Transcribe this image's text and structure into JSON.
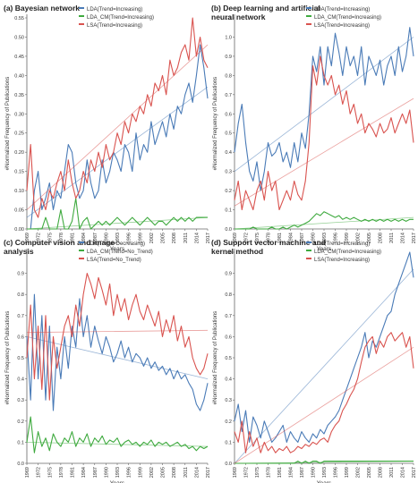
{
  "chart_data": [
    {
      "type": "line",
      "title": "(a) Bayesian network",
      "xlabel": "Years",
      "ylabel": "#Normalized Frequency of Publications",
      "ylim": [
        0,
        0.55
      ],
      "yticks": [
        "0.00",
        "0.05",
        "0.10",
        "0.15",
        "0.20",
        "0.25",
        "0.30",
        "0.35",
        "0.40",
        "0.45",
        "0.50",
        "0.55"
      ],
      "x_tick_labels": [
        "1969",
        "1972",
        "1975",
        "1978",
        "1981",
        "1984",
        "1987",
        "1990",
        "1993",
        "1996",
        "1999",
        "2002",
        "2005",
        "2008",
        "2011",
        "2014",
        "2017"
      ],
      "x": [
        1969,
        1970,
        1971,
        1972,
        1973,
        1974,
        1975,
        1976,
        1977,
        1978,
        1979,
        1980,
        1981,
        1982,
        1983,
        1984,
        1985,
        1986,
        1987,
        1988,
        1989,
        1990,
        1991,
        1992,
        1993,
        1994,
        1995,
        1996,
        1997,
        1998,
        1999,
        2000,
        2001,
        2002,
        2003,
        2004,
        2005,
        2006,
        2007,
        2008,
        2009,
        2010,
        2011,
        2012,
        2013,
        2014,
        2015,
        2016,
        2017
      ],
      "series": [
        {
          "name": "LDA(Trend=Increasing)",
          "color": "#4a7bb7",
          "values": [
            0.0,
            0.0,
            0.1,
            0.15,
            0.05,
            0.08,
            0.12,
            0.05,
            0.1,
            0.08,
            0.15,
            0.22,
            0.2,
            0.12,
            0.08,
            0.1,
            0.18,
            0.12,
            0.08,
            0.1,
            0.18,
            0.12,
            0.15,
            0.2,
            0.18,
            0.15,
            0.22,
            0.2,
            0.15,
            0.25,
            0.18,
            0.22,
            0.2,
            0.28,
            0.22,
            0.25,
            0.28,
            0.24,
            0.3,
            0.26,
            0.32,
            0.3,
            0.35,
            0.38,
            0.33,
            0.4,
            0.48,
            0.42,
            0.34
          ],
          "trend": [
            0.03,
            0.37
          ]
        },
        {
          "name": "LDA_CM(Trend=Increasing)",
          "color": "#3faa3f",
          "values": [
            0.0,
            0.0,
            0.0,
            0.0,
            0.0,
            0.03,
            0.0,
            0.0,
            0.0,
            0.05,
            0.0,
            0.0,
            0.02,
            0.08,
            0.0,
            0.02,
            0.03,
            0.0,
            0.01,
            0.02,
            0.01,
            0.02,
            0.01,
            0.02,
            0.03,
            0.02,
            0.01,
            0.02,
            0.03,
            0.02,
            0.01,
            0.02,
            0.03,
            0.02,
            0.01,
            0.02,
            0.02,
            0.01,
            0.02,
            0.03,
            0.02,
            0.03,
            0.02,
            0.03,
            0.02,
            0.03,
            0.03,
            0.03,
            0.03
          ],
          "trend": [
            0.0,
            0.03
          ]
        },
        {
          "name": "LSA(Trend=Increasing)",
          "color": "#d9534f",
          "values": [
            0.1,
            0.22,
            0.05,
            0.03,
            0.08,
            0.05,
            0.1,
            0.08,
            0.12,
            0.15,
            0.1,
            0.18,
            0.12,
            0.08,
            0.1,
            0.15,
            0.12,
            0.18,
            0.15,
            0.2,
            0.16,
            0.22,
            0.18,
            0.2,
            0.25,
            0.22,
            0.28,
            0.25,
            0.3,
            0.28,
            0.32,
            0.3,
            0.35,
            0.32,
            0.38,
            0.36,
            0.4,
            0.35,
            0.44,
            0.4,
            0.42,
            0.46,
            0.48,
            0.44,
            0.55,
            0.45,
            0.5,
            0.44,
            0.42
          ],
          "trend": [
            0.05,
            0.48
          ]
        }
      ]
    },
    {
      "type": "line",
      "title": "(b) Deep learning and artificial neural network",
      "xlabel": "Years",
      "ylabel": "#Normalized Frequency of Publications",
      "ylim": [
        0,
        1.1
      ],
      "yticks": [
        "0.0",
        "0.1",
        "0.2",
        "0.3",
        "0.4",
        "0.5",
        "0.6",
        "0.7",
        "0.8",
        "0.9",
        "1.0",
        "1.1"
      ],
      "x_tick_labels": [
        "1969",
        "1972",
        "1975",
        "1978",
        "1981",
        "1984",
        "1987",
        "1990",
        "1993",
        "1996",
        "1999",
        "2002",
        "2005",
        "2008",
        "2011",
        "2014",
        "2017"
      ],
      "x": [
        1969,
        1970,
        1971,
        1972,
        1973,
        1974,
        1975,
        1976,
        1977,
        1978,
        1979,
        1980,
        1981,
        1982,
        1983,
        1984,
        1985,
        1986,
        1987,
        1988,
        1989,
        1990,
        1991,
        1992,
        1993,
        1994,
        1995,
        1996,
        1997,
        1998,
        1999,
        2000,
        2001,
        2002,
        2003,
        2004,
        2005,
        2006,
        2007,
        2008,
        2009,
        2010,
        2011,
        2012,
        2013,
        2014,
        2015,
        2016,
        2017
      ],
      "series": [
        {
          "name": "LDA(Trend=Increasing)",
          "color": "#4a7bb7",
          "values": [
            0.4,
            0.55,
            0.65,
            0.45,
            0.3,
            0.25,
            0.35,
            0.2,
            0.3,
            0.45,
            0.38,
            0.4,
            0.45,
            0.35,
            0.4,
            0.32,
            0.45,
            0.35,
            0.5,
            0.42,
            0.6,
            0.9,
            0.82,
            0.95,
            0.75,
            0.95,
            0.85,
            1.02,
            0.92,
            0.8,
            0.95,
            0.85,
            0.9,
            0.8,
            0.95,
            0.75,
            0.9,
            0.85,
            0.8,
            0.88,
            0.75,
            0.85,
            0.9,
            0.8,
            0.95,
            0.82,
            0.9,
            1.05,
            0.9
          ],
          "trend": [
            0.3,
            1.0
          ]
        },
        {
          "name": "LDA_CM(Trend=Increasing)",
          "color": "#3faa3f",
          "values": [
            0.0,
            0.0,
            0.0,
            0.0,
            0.0,
            0.01,
            0.0,
            0.0,
            0.0,
            0.0,
            0.01,
            0.0,
            0.0,
            0.01,
            0.0,
            0.01,
            0.02,
            0.01,
            0.02,
            0.03,
            0.04,
            0.06,
            0.08,
            0.07,
            0.09,
            0.08,
            0.07,
            0.06,
            0.07,
            0.05,
            0.06,
            0.05,
            0.06,
            0.05,
            0.04,
            0.05,
            0.04,
            0.05,
            0.04,
            0.05,
            0.04,
            0.05,
            0.04,
            0.05,
            0.04,
            0.05,
            0.04,
            0.05,
            0.05
          ],
          "trend": [
            0.0,
            0.06
          ]
        },
        {
          "name": "LSA(Trend=Increasing)",
          "color": "#d9534f",
          "values": [
            0.15,
            0.25,
            0.1,
            0.2,
            0.15,
            0.1,
            0.2,
            0.25,
            0.15,
            0.3,
            0.2,
            0.25,
            0.1,
            0.15,
            0.2,
            0.15,
            0.25,
            0.18,
            0.15,
            0.25,
            0.45,
            0.85,
            0.75,
            0.9,
            0.8,
            0.75,
            0.8,
            0.7,
            0.75,
            0.65,
            0.72,
            0.6,
            0.65,
            0.55,
            0.6,
            0.5,
            0.55,
            0.52,
            0.48,
            0.55,
            0.5,
            0.52,
            0.58,
            0.5,
            0.55,
            0.6,
            0.55,
            0.62,
            0.45
          ],
          "trend": [
            0.12,
            0.68
          ]
        }
      ]
    },
    {
      "type": "line",
      "title": "(c) Computer vision and image analysis",
      "xlabel": "Years",
      "ylabel": "#Normalized Frequency of Publications",
      "ylim": [
        0,
        1.0
      ],
      "yticks": [
        "0.0",
        "0.1",
        "0.2",
        "0.3",
        "0.4",
        "0.5",
        "0.6",
        "0.7",
        "0.8",
        "0.9"
      ],
      "x_tick_labels": [
        "1969",
        "1972",
        "1975",
        "1978",
        "1981",
        "1984",
        "1987",
        "1990",
        "1993",
        "1996",
        "1999",
        "2002",
        "2005",
        "2008",
        "2011",
        "2014",
        "2017"
      ],
      "x": [
        1969,
        1970,
        1971,
        1972,
        1973,
        1974,
        1975,
        1976,
        1977,
        1978,
        1979,
        1980,
        1981,
        1982,
        1983,
        1984,
        1985,
        1986,
        1987,
        1988,
        1989,
        1990,
        1991,
        1992,
        1993,
        1994,
        1995,
        1996,
        1997,
        1998,
        1999,
        2000,
        2001,
        2002,
        2003,
        2004,
        2005,
        2006,
        2007,
        2008,
        2009,
        2010,
        2011,
        2012,
        2013,
        2014,
        2015,
        2016,
        2017
      ],
      "series": [
        {
          "name": "LDA(Trend=Decreasing)",
          "color": "#4a7bb7",
          "values": [
            0.6,
            0.3,
            0.8,
            0.4,
            0.7,
            0.3,
            0.65,
            0.25,
            0.55,
            0.4,
            0.6,
            0.45,
            0.65,
            0.55,
            0.78,
            0.6,
            0.7,
            0.55,
            0.65,
            0.58,
            0.52,
            0.6,
            0.55,
            0.48,
            0.52,
            0.58,
            0.5,
            0.55,
            0.48,
            0.52,
            0.5,
            0.46,
            0.5,
            0.45,
            0.48,
            0.44,
            0.46,
            0.42,
            0.45,
            0.4,
            0.44,
            0.4,
            0.42,
            0.38,
            0.35,
            0.28,
            0.25,
            0.3,
            0.38
          ],
          "trend": [
            0.6,
            0.4
          ]
        },
        {
          "name": "LDA_CM(Trend=No_Trend)",
          "color": "#3faa3f",
          "values": [
            0.1,
            0.22,
            0.05,
            0.15,
            0.08,
            0.12,
            0.06,
            0.14,
            0.1,
            0.08,
            0.12,
            0.1,
            0.15,
            0.08,
            0.12,
            0.1,
            0.14,
            0.08,
            0.12,
            0.1,
            0.13,
            0.09,
            0.11,
            0.1,
            0.12,
            0.08,
            0.1,
            0.11,
            0.09,
            0.1,
            0.08,
            0.1,
            0.09,
            0.11,
            0.08,
            0.1,
            0.09,
            0.1,
            0.08,
            0.09,
            0.1,
            0.08,
            0.09,
            0.07,
            0.08,
            0.06,
            0.08,
            0.07,
            0.08
          ],
          "trend": [
            0.1,
            0.08
          ]
        },
        {
          "name": "LSA(Trend=No_Trend)",
          "color": "#d9534f",
          "values": [
            0.5,
            0.75,
            0.4,
            0.65,
            0.35,
            0.7,
            0.3,
            0.6,
            0.45,
            0.55,
            0.65,
            0.7,
            0.6,
            0.75,
            0.65,
            0.8,
            0.9,
            0.85,
            0.78,
            0.88,
            0.82,
            0.75,
            0.85,
            0.7,
            0.8,
            0.72,
            0.78,
            0.68,
            0.75,
            0.8,
            0.72,
            0.68,
            0.75,
            0.7,
            0.65,
            0.72,
            0.6,
            0.68,
            0.62,
            0.7,
            0.58,
            0.65,
            0.55,
            0.6,
            0.5,
            0.45,
            0.42,
            0.45,
            0.52
          ],
          "trend": [
            0.62,
            0.63
          ]
        }
      ]
    },
    {
      "type": "line",
      "title": "(d) Support vector machine and kernel method",
      "xlabel": "Years",
      "ylabel": "#Normalized Frequency of Publications",
      "ylim": [
        0,
        1.0
      ],
      "yticks": [
        "0.0",
        "0.1",
        "0.2",
        "0.3",
        "0.4",
        "0.5",
        "0.6",
        "0.7",
        "0.8",
        "0.9",
        "1.0"
      ],
      "x_tick_labels": [
        "1969",
        "1972",
        "1975",
        "1978",
        "1981",
        "1984",
        "1987",
        "1990",
        "1993",
        "1996",
        "1999",
        "2002",
        "2005",
        "2008",
        "2011",
        "2014",
        "2017"
      ],
      "x": [
        1969,
        1970,
        1971,
        1972,
        1973,
        1974,
        1975,
        1976,
        1977,
        1978,
        1979,
        1980,
        1981,
        1982,
        1983,
        1984,
        1985,
        1986,
        1987,
        1988,
        1989,
        1990,
        1991,
        1992,
        1993,
        1994,
        1995,
        1996,
        1997,
        1998,
        1999,
        2000,
        2001,
        2002,
        2003,
        2004,
        2005,
        2006,
        2007,
        2008,
        2009,
        2010,
        2011,
        2012,
        2013,
        2014,
        2015,
        2016,
        2017
      ],
      "series": [
        {
          "name": "LDA(Trend=Increasing)",
          "color": "#4a7bb7",
          "values": [
            0.2,
            0.28,
            0.15,
            0.25,
            0.1,
            0.22,
            0.18,
            0.12,
            0.2,
            0.15,
            0.1,
            0.12,
            0.15,
            0.18,
            0.1,
            0.15,
            0.12,
            0.1,
            0.15,
            0.12,
            0.1,
            0.14,
            0.12,
            0.16,
            0.14,
            0.18,
            0.2,
            0.22,
            0.25,
            0.3,
            0.35,
            0.4,
            0.45,
            0.5,
            0.55,
            0.62,
            0.5,
            0.58,
            0.55,
            0.6,
            0.65,
            0.7,
            0.72,
            0.8,
            0.85,
            0.9,
            0.95,
            1.0,
            0.88
          ],
          "trend": [
            0.0,
            0.92
          ]
        },
        {
          "name": "LDA_CM(Trend=Increasing)",
          "color": "#3faa3f",
          "values": [
            0.0,
            0.0,
            0.0,
            0.0,
            0.0,
            0.0,
            0.0,
            0.0,
            0.0,
            0.0,
            0.0,
            0.0,
            0.0,
            0.0,
            0.0,
            0.0,
            0.0,
            0.01,
            0.0,
            0.01,
            0.0,
            0.01,
            0.01,
            0.0,
            0.01,
            0.01,
            0.01,
            0.01,
            0.01,
            0.01,
            0.01,
            0.01,
            0.01,
            0.01,
            0.01,
            0.01,
            0.01,
            0.01,
            0.01,
            0.01,
            0.01,
            0.01,
            0.01,
            0.01,
            0.01,
            0.01,
            0.01,
            0.01,
            0.01
          ],
          "trend": [
            0.0,
            0.01
          ]
        },
        {
          "name": "LSA(Trend=Increasing)",
          "color": "#d9534f",
          "values": [
            0.15,
            0.1,
            0.2,
            0.05,
            0.15,
            0.08,
            0.12,
            0.05,
            0.1,
            0.06,
            0.08,
            0.05,
            0.07,
            0.06,
            0.08,
            0.05,
            0.06,
            0.08,
            0.07,
            0.09,
            0.08,
            0.1,
            0.09,
            0.11,
            0.12,
            0.1,
            0.15,
            0.18,
            0.2,
            0.25,
            0.28,
            0.32,
            0.35,
            0.4,
            0.48,
            0.55,
            0.58,
            0.6,
            0.52,
            0.58,
            0.55,
            0.6,
            0.62,
            0.58,
            0.6,
            0.62,
            0.55,
            0.6,
            0.45
          ],
          "trend": [
            0.0,
            0.55
          ]
        }
      ]
    }
  ]
}
